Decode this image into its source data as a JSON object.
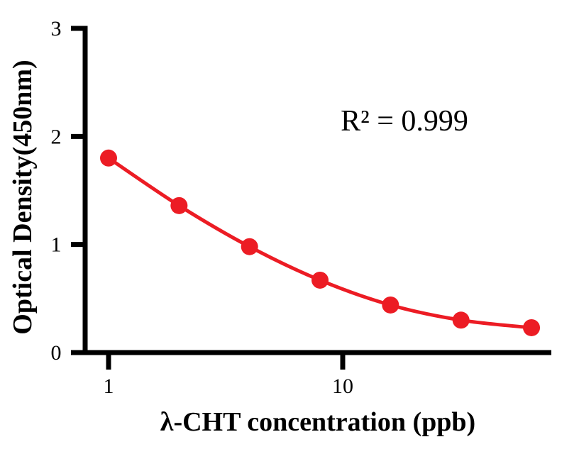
{
  "chart_data": {
    "type": "scatter",
    "x": [
      1,
      2,
      4,
      8,
      16,
      32,
      64
    ],
    "y": [
      1.8,
      1.36,
      0.98,
      0.67,
      0.44,
      0.3,
      0.23
    ],
    "title": "",
    "xlabel": "λ-CHT concentration (ppb)",
    "ylabel": "Optical Density(450nm)",
    "annotation": "R² = 0.999",
    "x_scale": "log",
    "x_ticks": [
      1,
      10
    ],
    "y_ticks": [
      0,
      1,
      2,
      3
    ],
    "xlim": [
      0.8,
      78
    ],
    "ylim": [
      0,
      3
    ],
    "grid": false,
    "legend": false,
    "marker": "circle",
    "curve_style": "smooth",
    "line_color": "#EC1C24",
    "marker_color": "#EC1C24",
    "axis_color": "#000000",
    "background_color": "#FFFFFF"
  }
}
